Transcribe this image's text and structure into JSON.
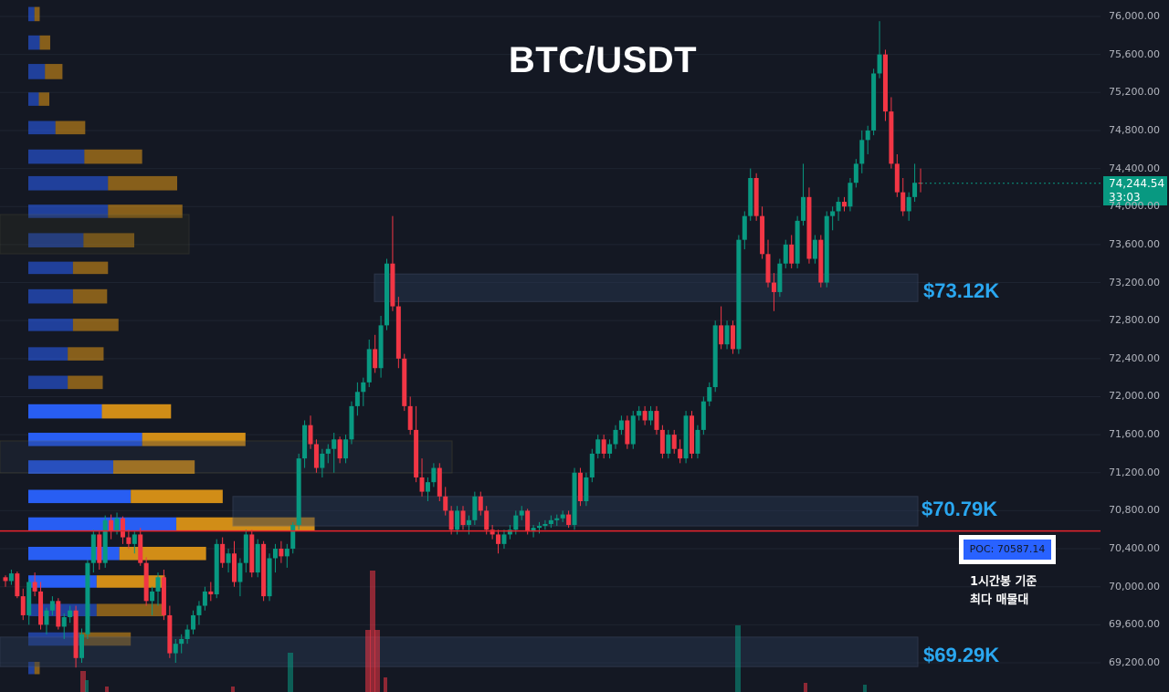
{
  "title": "BTC/USDT",
  "price_tag": {
    "price": "74,244.54",
    "countdown": "33:03"
  },
  "poc": {
    "label": "POC: 70587.14",
    "note_line1": "1시간봉 기준",
    "note_line2": "최다 매물대"
  },
  "zones": [
    {
      "label": "$73.12K",
      "low": 73000,
      "high": 73290
    },
    {
      "label": "$70.79K",
      "low": 70640,
      "high": 70950
    },
    {
      "label": "$69.29K",
      "low": 69160,
      "high": 69470
    }
  ],
  "colors": {
    "up": "#089981",
    "down": "#f23645",
    "poc_line": "#e8252d",
    "zone_label": "#2aa7f0",
    "vp_buy": "#2962ff",
    "vp_sell": "#e69a16"
  },
  "chart_data": {
    "type": "candlestick",
    "title": "BTC/USDT",
    "timeframe": "1H",
    "y_axis": {
      "min": 69000,
      "max": 76100,
      "ticks": [
        "76,000.00",
        "75,600.00",
        "75,200.00",
        "74,800.00",
        "74,400.00",
        "74,000.00",
        "73,600.00",
        "73,200.00",
        "72,800.00",
        "72,400.00",
        "72,000.00",
        "71,600.00",
        "71,200.00",
        "70,800.00",
        "70,400.00",
        "70,000.00",
        "69,600.00",
        "69,200.00"
      ]
    },
    "last_price": 74244.54,
    "poc_price": 70587.14,
    "candles_ohlc": [
      [
        70100,
        70120,
        70000,
        70060
      ],
      [
        70060,
        70180,
        70020,
        70140
      ],
      [
        70140,
        70160,
        69880,
        69900
      ],
      [
        69900,
        69980,
        69650,
        69700
      ],
      [
        69700,
        70080,
        69600,
        70050
      ],
      [
        70050,
        70150,
        69900,
        69950
      ],
      [
        69950,
        70050,
        69550,
        69600
      ],
      [
        69600,
        69780,
        69500,
        69750
      ],
      [
        69750,
        69900,
        69700,
        69850
      ],
      [
        69850,
        69880,
        69550,
        69580
      ],
      [
        69580,
        69720,
        69450,
        69680
      ],
      [
        69680,
        69800,
        69620,
        69750
      ],
      [
        69750,
        69800,
        69150,
        69250
      ],
      [
        69250,
        69560,
        69200,
        69500
      ],
      [
        69500,
        70280,
        69450,
        70250
      ],
      [
        70250,
        70600,
        70150,
        70550
      ],
      [
        70550,
        70580,
        70180,
        70250
      ],
      [
        70250,
        70750,
        70200,
        70700
      ],
      [
        70700,
        70760,
        70500,
        70580
      ],
      [
        70580,
        70780,
        70550,
        70720
      ],
      [
        70720,
        70740,
        70450,
        70520
      ],
      [
        70520,
        70600,
        70400,
        70450
      ],
      [
        70450,
        70580,
        70350,
        70550
      ],
      [
        70550,
        70620,
        70220,
        70250
      ],
      [
        70250,
        70310,
        69800,
        69850
      ],
      [
        69850,
        70000,
        69700,
        69950
      ],
      [
        69950,
        70150,
        69800,
        70100
      ],
      [
        70100,
        70180,
        69650,
        69700
      ],
      [
        69700,
        69800,
        69250,
        69300
      ],
      [
        69300,
        69450,
        69200,
        69400
      ],
      [
        69400,
        69500,
        69300,
        69450
      ],
      [
        69450,
        69600,
        69400,
        69550
      ],
      [
        69550,
        69750,
        69500,
        69700
      ],
      [
        69700,
        69850,
        69600,
        69800
      ],
      [
        69800,
        70000,
        69750,
        69950
      ],
      [
        69950,
        70050,
        69850,
        69920
      ],
      [
        69920,
        70500,
        69880,
        70450
      ],
      [
        70450,
        70520,
        70200,
        70250
      ],
      [
        70250,
        70400,
        70150,
        70350
      ],
      [
        70350,
        70480,
        70000,
        70050
      ],
      [
        70050,
        70300,
        69900,
        70250
      ],
      [
        70250,
        70600,
        70150,
        70550
      ],
      [
        70550,
        70600,
        70100,
        70150
      ],
      [
        70150,
        70500,
        70100,
        70450
      ],
      [
        70450,
        70480,
        69850,
        69900
      ],
      [
        69900,
        70350,
        69850,
        70300
      ],
      [
        70300,
        70450,
        70150,
        70400
      ],
      [
        70400,
        70480,
        70250,
        70320
      ],
      [
        70320,
        70450,
        70200,
        70400
      ],
      [
        70400,
        70680,
        70350,
        70650
      ],
      [
        70650,
        71400,
        70600,
        71350
      ],
      [
        71350,
        71750,
        71250,
        71700
      ],
      [
        71700,
        71800,
        71450,
        71500
      ],
      [
        71500,
        71550,
        71200,
        71250
      ],
      [
        71250,
        71450,
        71150,
        71400
      ],
      [
        71400,
        71500,
        71300,
        71450
      ],
      [
        71450,
        71620,
        71200,
        71550
      ],
      [
        71550,
        71580,
        71300,
        71350
      ],
      [
        71350,
        71600,
        71300,
        71550
      ],
      [
        71550,
        71950,
        71500,
        71900
      ],
      [
        71900,
        72150,
        71800,
        72050
      ],
      [
        72050,
        72200,
        71900,
        72150
      ],
      [
        72150,
        72600,
        72100,
        72500
      ],
      [
        72500,
        72650,
        72250,
        72300
      ],
      [
        72300,
        72850,
        72200,
        72750
      ],
      [
        72750,
        73450,
        72700,
        73400
      ],
      [
        73400,
        73900,
        72900,
        72950
      ],
      [
        72950,
        73050,
        72300,
        72400
      ],
      [
        72400,
        72450,
        71850,
        71900
      ],
      [
        71900,
        72000,
        71600,
        71650
      ],
      [
        71650,
        71900,
        71100,
        71150
      ],
      [
        71150,
        71350,
        70950,
        71000
      ],
      [
        71000,
        71150,
        70900,
        71100
      ],
      [
        71100,
        71300,
        71050,
        71250
      ],
      [
        71250,
        71300,
        70900,
        70950
      ],
      [
        70950,
        71050,
        70750,
        70800
      ],
      [
        70800,
        70850,
        70550,
        70600
      ],
      [
        70600,
        70850,
        70550,
        70800
      ],
      [
        70800,
        70850,
        70600,
        70650
      ],
      [
        70650,
        70750,
        70550,
        70700
      ],
      [
        70700,
        71000,
        70650,
        70950
      ],
      [
        70950,
        71000,
        70750,
        70800
      ],
      [
        70800,
        70850,
        70550,
        70600
      ],
      [
        70600,
        70650,
        70500,
        70550
      ],
      [
        70550,
        70600,
        70350,
        70450
      ],
      [
        70450,
        70600,
        70400,
        70550
      ],
      [
        70550,
        70650,
        70500,
        70600
      ],
      [
        70600,
        70800,
        70550,
        70750
      ],
      [
        70750,
        70850,
        70700,
        70800
      ],
      [
        70800,
        70820,
        70550,
        70580
      ],
      [
        70580,
        70650,
        70520,
        70620
      ],
      [
        70620,
        70680,
        70560,
        70640
      ],
      [
        70640,
        70700,
        70600,
        70660
      ],
      [
        70660,
        70750,
        70620,
        70700
      ],
      [
        70700,
        70760,
        70640,
        70720
      ],
      [
        70720,
        70800,
        70680,
        70760
      ],
      [
        70760,
        70800,
        70620,
        70650
      ],
      [
        70650,
        71250,
        70600,
        71200
      ],
      [
        71200,
        71250,
        70850,
        70900
      ],
      [
        70900,
        71200,
        70850,
        71150
      ],
      [
        71150,
        71450,
        71100,
        71400
      ],
      [
        71400,
        71600,
        71350,
        71550
      ],
      [
        71550,
        71600,
        71350,
        71400
      ],
      [
        71400,
        71550,
        71350,
        71500
      ],
      [
        71500,
        71700,
        71450,
        71650
      ],
      [
        71650,
        71800,
        71600,
        71750
      ],
      [
        71750,
        71800,
        71450,
        71500
      ],
      [
        71500,
        71850,
        71450,
        71800
      ],
      [
        71800,
        71900,
        71750,
        71850
      ],
      [
        71850,
        71900,
        71700,
        71750
      ],
      [
        71750,
        71900,
        71700,
        71850
      ],
      [
        71850,
        71900,
        71600,
        71650
      ],
      [
        71650,
        71700,
        71350,
        71400
      ],
      [
        71400,
        71650,
        71350,
        71600
      ],
      [
        71600,
        71650,
        71400,
        71450
      ],
      [
        71450,
        71550,
        71300,
        71350
      ],
      [
        71350,
        71850,
        71300,
        71800
      ],
      [
        71800,
        71850,
        71350,
        71400
      ],
      [
        71400,
        71700,
        71350,
        71650
      ],
      [
        71650,
        72000,
        71600,
        71950
      ],
      [
        71950,
        72150,
        71900,
        72100
      ],
      [
        72100,
        72800,
        72050,
        72750
      ],
      [
        72750,
        72950,
        72500,
        72550
      ],
      [
        72550,
        72800,
        72500,
        72750
      ],
      [
        72750,
        72800,
        72450,
        72500
      ],
      [
        72500,
        73700,
        72450,
        73650
      ],
      [
        73650,
        73950,
        73550,
        73900
      ],
      [
        73900,
        74400,
        73850,
        74300
      ],
      [
        74300,
        74350,
        73850,
        73900
      ],
      [
        73900,
        74000,
        73450,
        73500
      ],
      [
        73500,
        73650,
        73150,
        73200
      ],
      [
        73200,
        73300,
        72900,
        73100
      ],
      [
        73100,
        73450,
        73050,
        73400
      ],
      [
        73400,
        73650,
        73350,
        73600
      ],
      [
        73600,
        73700,
        73350,
        73400
      ],
      [
        73400,
        73900,
        73350,
        73850
      ],
      [
        73850,
        74450,
        73800,
        74100
      ],
      [
        74100,
        74200,
        73400,
        73450
      ],
      [
        73450,
        73700,
        73400,
        73650
      ],
      [
        73650,
        73700,
        73150,
        73200
      ],
      [
        73200,
        73950,
        73150,
        73900
      ],
      [
        73900,
        74000,
        73750,
        73950
      ],
      [
        73950,
        74100,
        73850,
        74050
      ],
      [
        74050,
        74100,
        73950,
        74000
      ],
      [
        74000,
        74300,
        73950,
        74250
      ],
      [
        74250,
        74500,
        74200,
        74450
      ],
      [
        74450,
        74800,
        74350,
        74700
      ],
      [
        74700,
        74850,
        74550,
        74800
      ],
      [
        74800,
        75450,
        74750,
        75400
      ],
      [
        75400,
        75950,
        75350,
        75600
      ],
      [
        75600,
        75650,
        74900,
        75000
      ],
      [
        75000,
        75150,
        74400,
        74450
      ],
      [
        74450,
        74550,
        74100,
        74150
      ],
      [
        74150,
        74300,
        73900,
        73950
      ],
      [
        73950,
        74150,
        73850,
        74100
      ],
      [
        74100,
        74450,
        74050,
        74250
      ],
      [
        74250,
        74400,
        74150,
        74244
      ]
    ],
    "volume_profile": [
      {
        "low": 75950,
        "high": 76100,
        "buy": 7,
        "sell": 6
      },
      {
        "low": 75650,
        "high": 75800,
        "buy": 13,
        "sell": 12
      },
      {
        "low": 75340,
        "high": 75500,
        "buy": 19,
        "sell": 20
      },
      {
        "low": 75060,
        "high": 75200,
        "buy": 12,
        "sell": 12
      },
      {
        "low": 74760,
        "high": 74900,
        "buy": 31,
        "sell": 34
      },
      {
        "low": 74450,
        "high": 74600,
        "buy": 64,
        "sell": 66
      },
      {
        "low": 74170,
        "high": 74320,
        "buy": 91,
        "sell": 79
      },
      {
        "low": 73880,
        "high": 74020,
        "buy": 91,
        "sell": 85
      },
      {
        "low": 73570,
        "high": 73720,
        "buy": 63,
        "sell": 58
      },
      {
        "low": 73290,
        "high": 73420,
        "buy": 51,
        "sell": 40
      },
      {
        "low": 72980,
        "high": 73130,
        "buy": 51,
        "sell": 39
      },
      {
        "low": 72690,
        "high": 72820,
        "buy": 51,
        "sell": 52
      },
      {
        "low": 72380,
        "high": 72520,
        "buy": 45,
        "sell": 41
      },
      {
        "low": 72080,
        "high": 72220,
        "buy": 45,
        "sell": 40
      },
      {
        "low": 71770,
        "high": 71920,
        "buy": 84,
        "sell": 79
      },
      {
        "low": 71480,
        "high": 71620,
        "buy": 130,
        "sell": 118
      },
      {
        "low": 71190,
        "high": 71330,
        "buy": 97,
        "sell": 93
      },
      {
        "low": 70880,
        "high": 71020,
        "buy": 117,
        "sell": 105
      },
      {
        "low": 70590,
        "high": 70730,
        "buy": 169,
        "sell": 158
      },
      {
        "low": 70280,
        "high": 70420,
        "buy": 104,
        "sell": 99
      },
      {
        "low": 69990,
        "high": 70120,
        "buy": 78,
        "sell": 78
      },
      {
        "low": 69690,
        "high": 69820,
        "buy": 78,
        "sell": 78
      },
      {
        "low": 69380,
        "high": 69520,
        "buy": 58,
        "sell": 59
      },
      {
        "low": 69080,
        "high": 69210,
        "buy": 7,
        "sell": 6
      }
    ]
  }
}
